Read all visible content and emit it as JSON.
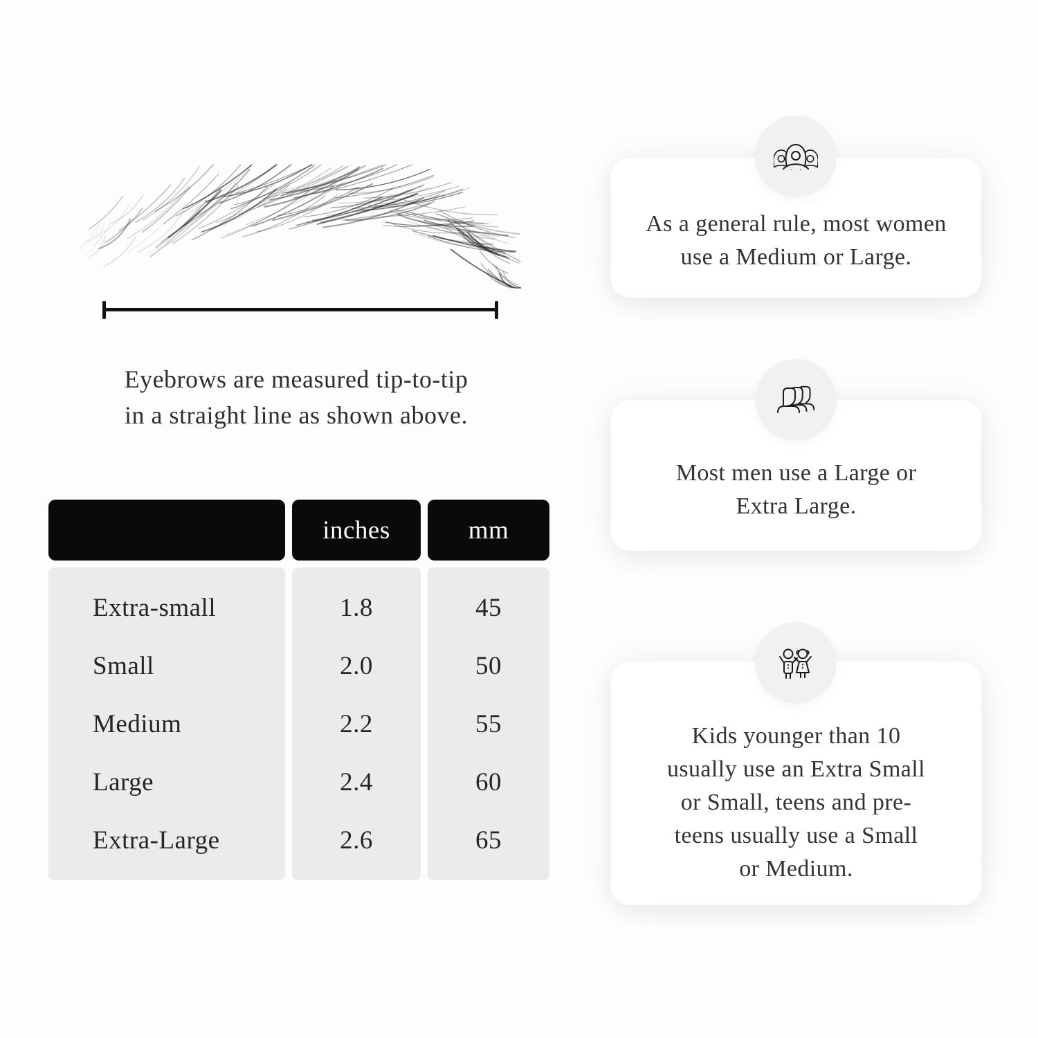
{
  "diagram": {
    "caption_lines": [
      "Eyebrows are measured tip-to-tip",
      "in a straight line as shown above."
    ]
  },
  "size_table": {
    "columns": [
      "",
      "inches",
      "mm"
    ],
    "rows": [
      {
        "label": "Extra-small",
        "inches": "1.8",
        "mm": "45"
      },
      {
        "label": "Small",
        "inches": "2.0",
        "mm": "50"
      },
      {
        "label": "Medium",
        "inches": "2.2",
        "mm": "55"
      },
      {
        "label": "Large",
        "inches": "2.4",
        "mm": "60"
      },
      {
        "label": "Extra-Large",
        "inches": "2.6",
        "mm": "65"
      }
    ]
  },
  "cards": [
    {
      "icon": "women-icon",
      "text": "As a general rule, most women use a Medium or Large."
    },
    {
      "icon": "men-icon",
      "text": "Most men use a Large or Extra Large."
    },
    {
      "icon": "kids-icon",
      "text": "Kids younger than 10 usually use an Extra Small or Small, teens and pre-teens usually use a Small or Medium."
    }
  ],
  "colors": {
    "page_background": "#fdfdfd",
    "table_header_bg": "#0a0a0a",
    "table_body_bg": "#ebebeb",
    "card_bg": "#ffffff",
    "icon_circle_bg": "#f1f1f1",
    "line_color": "#121212"
  }
}
